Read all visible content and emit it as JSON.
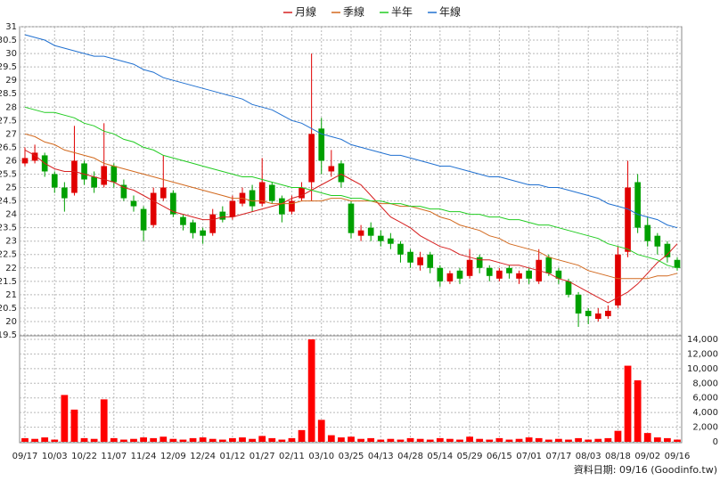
{
  "chart_data": {
    "type": "candlestick",
    "legend": "top",
    "grid": true,
    "up_color": "#e00000",
    "down_color": "#00a000",
    "categories": [
      "09/17",
      null,
      null,
      "10/03",
      null,
      null,
      "10/22",
      null,
      null,
      "11/07",
      null,
      null,
      "11/24",
      null,
      null,
      "12/09",
      null,
      null,
      "12/24",
      null,
      null,
      "01/12",
      null,
      null,
      "01/27",
      null,
      null,
      "02/11",
      null,
      null,
      "03/10",
      null,
      null,
      "03/25",
      null,
      null,
      "04/13",
      null,
      null,
      "04/28",
      null,
      null,
      "05/14",
      null,
      null,
      "05/29",
      null,
      null,
      "06/15",
      null,
      null,
      "07/01",
      null,
      null,
      "07/17",
      null,
      null,
      "08/03",
      null,
      null,
      "08/18",
      null,
      null,
      "09/02",
      null,
      null,
      "09/16"
    ],
    "open": [
      25.9,
      26.0,
      26.2,
      25.5,
      25.0,
      24.8,
      25.9,
      25.4,
      25.1,
      25.8,
      25.1,
      24.5,
      24.2,
      23.6,
      24.6,
      24.8,
      23.9,
      23.7,
      23.4,
      23.3,
      24.1,
      23.9,
      24.4,
      24.9,
      24.4,
      25.1,
      24.6,
      24.1,
      24.6,
      25.2,
      27.2,
      25.6,
      25.9,
      24.4,
      23.2,
      23.5,
      23.2,
      23.1,
      22.9,
      22.6,
      22.1,
      22.5,
      22.0,
      21.5,
      21.9,
      21.7,
      22.4,
      22.0,
      21.6,
      22.0,
      21.6,
      21.9,
      21.5,
      22.4,
      21.9,
      21.5,
      21.0,
      20.4,
      20.1,
      20.2,
      20.6,
      22.6,
      25.2,
      23.6,
      23.2,
      22.9,
      22.3
    ],
    "high": [
      26.5,
      26.6,
      26.3,
      25.6,
      25.2,
      27.3,
      26.0,
      25.6,
      27.4,
      25.9,
      25.3,
      24.7,
      24.3,
      25.0,
      26.2,
      24.9,
      24.0,
      23.8,
      23.5,
      24.2,
      24.3,
      24.7,
      25.0,
      25.1,
      26.1,
      25.2,
      24.7,
      24.7,
      25.2,
      30.0,
      27.6,
      26.4,
      26.0,
      24.5,
      23.6,
      23.7,
      23.4,
      23.3,
      23.0,
      22.7,
      22.6,
      22.6,
      22.1,
      21.9,
      22.0,
      22.7,
      22.5,
      22.1,
      22.0,
      22.1,
      21.9,
      22.0,
      22.7,
      22.5,
      22.0,
      21.6,
      21.1,
      20.5,
      20.5,
      20.6,
      22.8,
      26.0,
      25.5,
      23.9,
      23.3,
      23.0,
      22.4
    ],
    "low": [
      25.8,
      25.9,
      25.4,
      24.8,
      24.1,
      24.7,
      25.1,
      24.8,
      25.0,
      25.0,
      24.5,
      24.1,
      23.0,
      23.5,
      24.5,
      23.9,
      23.4,
      23.1,
      22.9,
      23.2,
      23.7,
      23.8,
      24.3,
      24.1,
      24.3,
      24.4,
      23.7,
      24.0,
      24.5,
      24.5,
      25.5,
      25.4,
      25.0,
      23.1,
      23.0,
      23.0,
      22.8,
      22.7,
      22.2,
      22.0,
      21.9,
      21.8,
      21.3,
      21.4,
      21.4,
      21.6,
      21.8,
      21.5,
      21.5,
      21.6,
      21.4,
      21.4,
      21.4,
      21.7,
      21.4,
      20.9,
      19.8,
      19.9,
      20.0,
      20.1,
      20.5,
      22.4,
      23.3,
      22.8,
      22.5,
      22.2,
      21.9
    ],
    "close": [
      26.1,
      26.3,
      25.6,
      25.0,
      24.6,
      26.0,
      25.3,
      25.0,
      25.8,
      25.2,
      24.6,
      24.3,
      23.4,
      24.8,
      25.0,
      24.0,
      23.6,
      23.3,
      23.2,
      24.0,
      23.8,
      24.5,
      24.8,
      24.3,
      25.2,
      24.5,
      24.0,
      24.5,
      25.0,
      27.0,
      26.0,
      25.8,
      25.2,
      23.3,
      23.4,
      23.2,
      23.0,
      22.9,
      22.5,
      22.2,
      22.4,
      22.0,
      21.5,
      21.8,
      21.6,
      22.3,
      22.0,
      21.7,
      21.9,
      21.8,
      21.8,
      21.6,
      22.3,
      21.8,
      21.6,
      21.0,
      20.3,
      20.2,
      20.3,
      20.4,
      22.5,
      25.0,
      23.5,
      23.0,
      22.8,
      22.4,
      22.0
    ],
    "series": [
      {
        "name": "月線",
        "color": "#d62020",
        "values": [
          26.4,
          26.2,
          25.9,
          25.7,
          25.6,
          25.6,
          25.5,
          25.4,
          25.3,
          25.2,
          25.0,
          24.9,
          24.7,
          24.5,
          24.3,
          24.1,
          24.0,
          23.9,
          23.8,
          23.8,
          23.9,
          23.9,
          24.0,
          24.1,
          24.2,
          24.3,
          24.4,
          24.6,
          24.7,
          24.9,
          25.1,
          25.3,
          25.5,
          25.3,
          25.1,
          24.7,
          24.3,
          23.9,
          23.7,
          23.5,
          23.2,
          23.0,
          22.8,
          22.7,
          22.5,
          22.4,
          22.3,
          22.3,
          22.2,
          22.1,
          22.1,
          22.0,
          21.9,
          21.8,
          21.6,
          21.5,
          21.3,
          21.1,
          20.9,
          20.7,
          20.9,
          21.1,
          21.4,
          21.8,
          22.2,
          22.5,
          22.9
        ]
      },
      {
        "name": "季線",
        "color": "#d2691e",
        "values": [
          27.0,
          26.9,
          26.7,
          26.6,
          26.4,
          26.3,
          26.2,
          26.1,
          25.9,
          25.8,
          25.7,
          25.6,
          25.5,
          25.4,
          25.3,
          25.2,
          25.1,
          25.0,
          24.9,
          24.8,
          24.7,
          24.6,
          24.6,
          24.5,
          24.5,
          24.4,
          24.4,
          24.4,
          24.5,
          24.5,
          24.5,
          24.6,
          24.6,
          24.5,
          24.5,
          24.5,
          24.4,
          24.4,
          24.3,
          24.3,
          24.2,
          24.1,
          23.9,
          23.8,
          23.6,
          23.5,
          23.4,
          23.2,
          23.1,
          22.9,
          22.8,
          22.7,
          22.6,
          22.4,
          22.3,
          22.2,
          22.1,
          21.9,
          21.8,
          21.7,
          21.6,
          21.6,
          21.6,
          21.6,
          21.7,
          21.7,
          21.8
        ]
      },
      {
        "name": "半年",
        "color": "#22cc22",
        "values": [
          28.0,
          27.9,
          27.8,
          27.8,
          27.7,
          27.6,
          27.4,
          27.3,
          27.1,
          27.0,
          26.8,
          26.7,
          26.5,
          26.4,
          26.2,
          26.1,
          26.0,
          25.9,
          25.8,
          25.7,
          25.6,
          25.5,
          25.4,
          25.4,
          25.3,
          25.2,
          25.1,
          25.0,
          25.0,
          24.9,
          24.8,
          24.7,
          24.7,
          24.6,
          24.6,
          24.5,
          24.5,
          24.4,
          24.4,
          24.3,
          24.3,
          24.2,
          24.2,
          24.1,
          24.1,
          24.0,
          24.0,
          23.9,
          23.9,
          23.8,
          23.8,
          23.7,
          23.6,
          23.6,
          23.5,
          23.4,
          23.3,
          23.2,
          23.1,
          22.9,
          22.8,
          22.7,
          22.5,
          22.4,
          22.3,
          22.1,
          22.0
        ]
      },
      {
        "name": "年線",
        "color": "#2070d0",
        "values": [
          30.7,
          30.6,
          30.5,
          30.3,
          30.2,
          30.1,
          30.0,
          29.9,
          29.9,
          29.8,
          29.7,
          29.6,
          29.4,
          29.3,
          29.1,
          29.0,
          28.9,
          28.8,
          28.7,
          28.6,
          28.5,
          28.4,
          28.3,
          28.1,
          28.0,
          27.9,
          27.7,
          27.5,
          27.4,
          27.2,
          27.0,
          26.9,
          26.8,
          26.6,
          26.5,
          26.4,
          26.3,
          26.2,
          26.2,
          26.1,
          26.0,
          25.9,
          25.8,
          25.8,
          25.7,
          25.6,
          25.5,
          25.4,
          25.4,
          25.3,
          25.2,
          25.1,
          25.1,
          25.0,
          25.0,
          24.9,
          24.8,
          24.7,
          24.6,
          24.4,
          24.3,
          24.2,
          24.0,
          23.9,
          23.8,
          23.6,
          23.5
        ]
      }
    ],
    "ylim": [
      19.5,
      31
    ],
    "yticks": [
      19.5,
      20,
      20.5,
      21,
      21.5,
      22,
      22.5,
      23,
      23.5,
      24,
      24.5,
      25,
      25.5,
      26,
      26.5,
      27,
      27.5,
      28,
      28.5,
      29,
      29.5,
      30,
      30.5,
      31
    ],
    "volume": {
      "color": "#ff0000",
      "values": [
        500,
        400,
        600,
        300,
        6400,
        4400,
        500,
        400,
        5800,
        500,
        300,
        400,
        600,
        500,
        700,
        400,
        300,
        500,
        600,
        400,
        300,
        500,
        600,
        400,
        800,
        500,
        300,
        500,
        1600,
        14000,
        3000,
        900,
        600,
        700,
        400,
        500,
        300,
        400,
        300,
        500,
        400,
        300,
        500,
        400,
        300,
        700,
        400,
        300,
        500,
        300,
        400,
        600,
        500,
        300,
        400,
        300,
        500,
        300,
        400,
        500,
        1500,
        10400,
        8400,
        1200,
        600,
        500,
        300
      ],
      "ylim": [
        0,
        14000
      ],
      "yticks": [
        0,
        {
          "value": 2000,
          "label": "2,000"
        },
        {
          "value": 4000,
          "label": "4,000"
        },
        {
          "value": 6000,
          "label": "6,000"
        },
        {
          "value": 8000,
          "label": "8,000"
        },
        {
          "value": 10000,
          "label": "10,000"
        },
        {
          "value": 12000,
          "label": "12,000"
        },
        {
          "value": 14000,
          "label": "14,000"
        }
      ]
    },
    "footer": "資料日期: 09/16  (Goodinfo.tw)"
  }
}
